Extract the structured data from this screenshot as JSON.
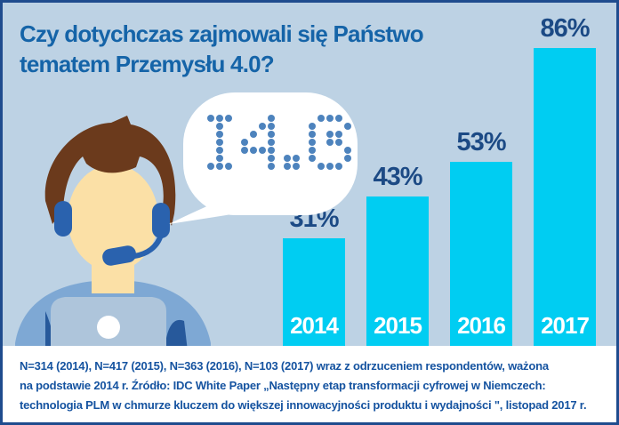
{
  "title": {
    "lines": [
      "Czy dotychczas zajmowali się Państwo",
      "tematem Przemysłu 4.0?"
    ]
  },
  "speech_bubble": {
    "text": "I4.0"
  },
  "illustration": {
    "name": "call-center-agent-with-headset-and-laptop"
  },
  "chart_data": {
    "type": "bar",
    "title": "Czy dotychczas zajmowali się Państwo tematem Przemysłu 4.0?",
    "categories": [
      "2014",
      "2015",
      "2016",
      "2017"
    ],
    "values": [
      31,
      43,
      53,
      86
    ],
    "labels": [
      "31%",
      "43%",
      "53%",
      "86%"
    ],
    "unit": "%",
    "ylim": [
      0,
      100
    ],
    "grid": false,
    "legend": "none",
    "value_labels_position": "above-bars",
    "category_labels_position": "inside-bar-bottom"
  },
  "footer": {
    "lines": [
      "N=314 (2014), N=417 (2015), N=363 (2016), N=103 (2017) wraz z odrzuceniem respondentów, ważona",
      "na podstawie 2014 r. Źródło: IDC White Paper „Następny etap transformacji cyfrowej w Niemczech:",
      "technologia PLM w chmurze kluczem do większej innowacyjności produktu i wydajności \", listopad 2017 r."
    ]
  },
  "colors": {
    "background": "#bdd2e4",
    "border": "#1f4c8e",
    "title-text": "#1564a8",
    "bar-fill": "#00cdf2",
    "value-label": "#1c4a85",
    "year-label": "#ffffff",
    "footer-text": "#1553a0",
    "footer-bg": "#ffffff",
    "bubble-bg": "#ffffff",
    "bubble-dot": "#4d83bd",
    "skin": "#fbe0a6",
    "hair": "#6b3a1c",
    "headset": "#2a62ae",
    "shirt": "#7ea8d4",
    "laptop": "#aec5db",
    "accent-dark": "#27599b"
  }
}
